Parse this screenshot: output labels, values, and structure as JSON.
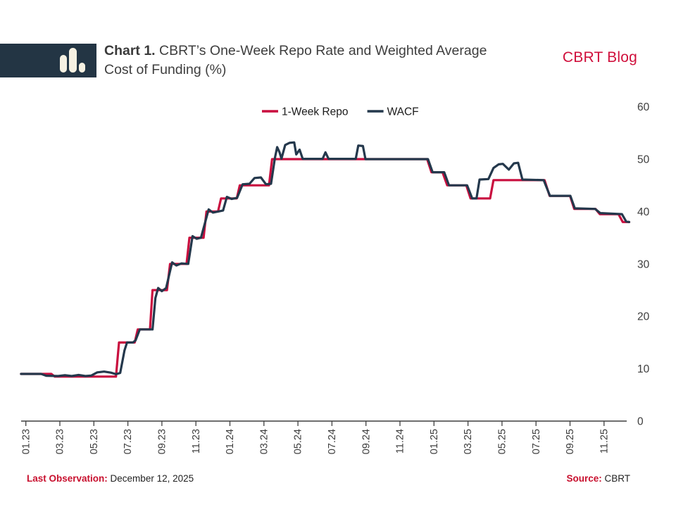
{
  "header": {
    "title_label": "Chart 1.",
    "title_line1": "CBRT’s One-Week Repo Rate and Weighted Average",
    "title_line2": "Cost of Funding (%)",
    "brand": "CBRT Blog",
    "logo_icon": "bar-chart-icon"
  },
  "footer": {
    "last_observation_label": "Last Observation:",
    "last_observation_value": "December 12, 2025",
    "source_label": "Source:",
    "source_value": "CBRT"
  },
  "colors": {
    "accent_red": "#c8102e",
    "brand_red": "#d0103c",
    "repo_line": "#c90f3f",
    "wacf_line": "#24384c",
    "logo_navy": "#233544",
    "logo_icon_fill": "#f6f1e2",
    "axis": "#3f3f3f",
    "tick_text": "#3d3d3d",
    "legend_text": "#1a1a1a"
  },
  "chart_data": {
    "type": "line",
    "title": "CBRT’s One-Week Repo Rate and Weighted Average Cost of Funding (%)",
    "x_unit": "months since January 2023",
    "xlim": [
      -0.3,
      35.6
    ],
    "ylim": [
      0,
      60
    ],
    "grid": false,
    "legend_position": "top-center",
    "y_ticks": [
      {
        "v": 0,
        "label": "0"
      },
      {
        "v": 10,
        "label": "10"
      },
      {
        "v": 20,
        "label": "20"
      },
      {
        "v": 30,
        "label": "30"
      },
      {
        "v": 40,
        "label": "40"
      },
      {
        "v": 50,
        "label": "50"
      },
      {
        "v": 60,
        "label": "60"
      }
    ],
    "x_ticks": [
      {
        "m": 0,
        "label": "01.23"
      },
      {
        "m": 2,
        "label": "03.23"
      },
      {
        "m": 4,
        "label": "05.23"
      },
      {
        "m": 6,
        "label": "07.23"
      },
      {
        "m": 8,
        "label": "09.23"
      },
      {
        "m": 10,
        "label": "11.23"
      },
      {
        "m": 12,
        "label": "01.24"
      },
      {
        "m": 14,
        "label": "03.24"
      },
      {
        "m": 16,
        "label": "05.24"
      },
      {
        "m": 18,
        "label": "07.24"
      },
      {
        "m": 20,
        "label": "09.24"
      },
      {
        "m": 22,
        "label": "11.24"
      },
      {
        "m": 24,
        "label": "01.25"
      },
      {
        "m": 26,
        "label": "03.25"
      },
      {
        "m": 28,
        "label": "05.25"
      },
      {
        "m": 30,
        "label": "07.25"
      },
      {
        "m": 32,
        "label": "09.25"
      },
      {
        "m": 34,
        "label": "11.25"
      }
    ],
    "series": [
      {
        "name": "1-Week Repo",
        "color": "#c90f3f",
        "width": 3.2,
        "points": [
          [
            -0.28,
            9
          ],
          [
            1.5,
            9
          ],
          [
            1.7,
            8.5
          ],
          [
            5.3,
            8.5
          ],
          [
            5.48,
            15
          ],
          [
            6.4,
            15
          ],
          [
            6.58,
            17.5
          ],
          [
            7.3,
            17.5
          ],
          [
            7.45,
            25
          ],
          [
            8.3,
            25
          ],
          [
            8.48,
            30
          ],
          [
            9.45,
            30
          ],
          [
            9.62,
            35
          ],
          [
            10.45,
            35
          ],
          [
            10.62,
            40
          ],
          [
            11.3,
            40
          ],
          [
            11.48,
            42.5
          ],
          [
            12.4,
            42.5
          ],
          [
            12.58,
            45
          ],
          [
            14.3,
            45
          ],
          [
            14.48,
            50
          ],
          [
            23.6,
            50
          ],
          [
            23.85,
            47.5
          ],
          [
            24.5,
            47.5
          ],
          [
            24.78,
            45
          ],
          [
            25.9,
            45
          ],
          [
            26.15,
            42.5
          ],
          [
            27.3,
            42.5
          ],
          [
            27.5,
            46
          ],
          [
            30.5,
            46
          ],
          [
            30.8,
            43
          ],
          [
            32.0,
            43
          ],
          [
            32.25,
            40.5
          ],
          [
            33.5,
            40.5
          ],
          [
            33.75,
            39.5
          ],
          [
            34.85,
            39.5
          ],
          [
            35.1,
            38
          ],
          [
            35.48,
            38
          ]
        ]
      },
      {
        "name": "WACF",
        "color": "#24384c",
        "width": 3.2,
        "points": [
          [
            -0.28,
            9
          ],
          [
            0.9,
            9
          ],
          [
            1.2,
            8.65
          ],
          [
            1.9,
            8.6
          ],
          [
            2.3,
            8.75
          ],
          [
            2.7,
            8.6
          ],
          [
            3.1,
            8.8
          ],
          [
            3.5,
            8.6
          ],
          [
            3.85,
            8.7
          ],
          [
            4.2,
            9.3
          ],
          [
            4.6,
            9.45
          ],
          [
            5.0,
            9.25
          ],
          [
            5.3,
            8.95
          ],
          [
            5.55,
            9.2
          ],
          [
            5.8,
            13.5
          ],
          [
            5.95,
            15
          ],
          [
            6.3,
            15
          ],
          [
            6.45,
            15.4
          ],
          [
            6.7,
            17.5
          ],
          [
            7.45,
            17.5
          ],
          [
            7.62,
            23.5
          ],
          [
            7.78,
            25.4
          ],
          [
            8.0,
            24.8
          ],
          [
            8.25,
            25.4
          ],
          [
            8.6,
            30.3
          ],
          [
            8.85,
            29.7
          ],
          [
            9.15,
            30.1
          ],
          [
            9.55,
            30
          ],
          [
            9.8,
            35.3
          ],
          [
            10.05,
            34.8
          ],
          [
            10.3,
            35
          ],
          [
            10.75,
            40.4
          ],
          [
            11.0,
            39.8
          ],
          [
            11.3,
            40
          ],
          [
            11.6,
            40.2
          ],
          [
            11.82,
            42.8
          ],
          [
            12.1,
            42.4
          ],
          [
            12.42,
            42.6
          ],
          [
            12.75,
            45.2
          ],
          [
            13.15,
            45.3
          ],
          [
            13.45,
            46.4
          ],
          [
            13.82,
            46.5
          ],
          [
            14.12,
            45.2
          ],
          [
            14.42,
            45.3
          ],
          [
            14.65,
            50.3
          ],
          [
            14.78,
            52.3
          ],
          [
            14.92,
            51.3
          ],
          [
            15.03,
            50.1
          ],
          [
            15.25,
            52.7
          ],
          [
            15.5,
            53.1
          ],
          [
            15.78,
            53.2
          ],
          [
            15.9,
            50.9
          ],
          [
            16.1,
            51.8
          ],
          [
            16.28,
            50.05
          ],
          [
            17.45,
            50.05
          ],
          [
            17.62,
            51.3
          ],
          [
            17.8,
            50.05
          ],
          [
            19.4,
            50.05
          ],
          [
            19.55,
            52.6
          ],
          [
            19.82,
            52.5
          ],
          [
            19.97,
            50
          ],
          [
            23.65,
            50
          ],
          [
            23.92,
            47.5
          ],
          [
            24.6,
            47.5
          ],
          [
            24.88,
            45
          ],
          [
            25.95,
            45
          ],
          [
            26.25,
            42.5
          ],
          [
            26.5,
            42.5
          ],
          [
            26.68,
            46.1
          ],
          [
            27.2,
            46.2
          ],
          [
            27.5,
            48.3
          ],
          [
            27.8,
            49.0
          ],
          [
            28.05,
            49.1
          ],
          [
            28.4,
            48.0
          ],
          [
            28.7,
            49.2
          ],
          [
            28.95,
            49.3
          ],
          [
            29.2,
            46.1
          ],
          [
            30.45,
            46
          ],
          [
            30.82,
            43
          ],
          [
            32.02,
            43
          ],
          [
            32.28,
            40.6
          ],
          [
            33.48,
            40.5
          ],
          [
            33.78,
            39.7
          ],
          [
            35.05,
            39.5
          ],
          [
            35.3,
            38.1
          ],
          [
            35.48,
            38
          ]
        ]
      }
    ]
  }
}
